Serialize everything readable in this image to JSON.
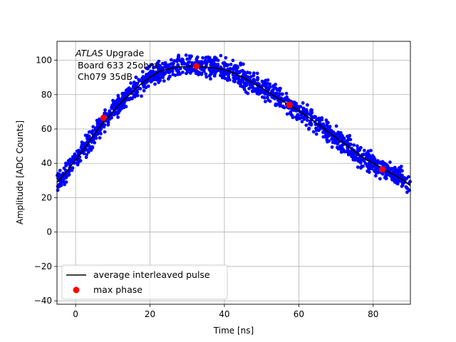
{
  "chart_data": {
    "type": "scatter",
    "title": "",
    "xlabel": "Time [ns]",
    "ylabel": "Amplitude [ADC Counts]",
    "xlim": [
      -5,
      90
    ],
    "ylim": [
      -42,
      111
    ],
    "xticks": [
      0,
      20,
      40,
      60,
      80
    ],
    "yticks": [
      -40,
      -20,
      0,
      20,
      40,
      60,
      80,
      100
    ],
    "grid": true,
    "legend_position": "lower-left",
    "annotation": {
      "italic": "ATLAS",
      "line1_rest": " Upgrade",
      "line2": "Board 633 25ohm",
      "line3": "Ch079 35dB"
    },
    "series": [
      {
        "name": "average interleaved pulse",
        "kind": "line",
        "color": "#000000",
        "x": [
          -5,
          -2.5,
          0,
          2.5,
          5,
          7.5,
          10,
          12.5,
          15,
          17.5,
          20,
          22.5,
          25,
          27.5,
          30,
          32.5,
          35,
          37.5,
          40,
          42.5,
          45,
          47.5,
          50,
          52.5,
          55,
          57.5,
          60,
          62.5,
          65,
          67.5,
          70,
          72.5,
          75,
          77.5,
          80,
          82.5,
          85,
          87.5,
          90
        ],
        "y": [
          29,
          35,
          42,
          49,
          57,
          64,
          70,
          76,
          81,
          86,
          90,
          93.5,
          95,
          96,
          96.5,
          96.5,
          96,
          95.5,
          94.5,
          92.5,
          90,
          87,
          84,
          80.5,
          77,
          74,
          70.5,
          67,
          63,
          59,
          55,
          51,
          47,
          43,
          40,
          37,
          34,
          31,
          27
        ]
      },
      {
        "name": "max phase",
        "kind": "points",
        "color": "#ff0000",
        "x": [
          7.5,
          32.5,
          57.5,
          82.5
        ],
        "y": [
          66.5,
          96.5,
          74,
          36.5
        ]
      },
      {
        "name": "",
        "kind": "scatter",
        "color": "#0000ff",
        "note": "dense samples scattered ±6 counts around the average pulse over the full time range"
      }
    ]
  }
}
